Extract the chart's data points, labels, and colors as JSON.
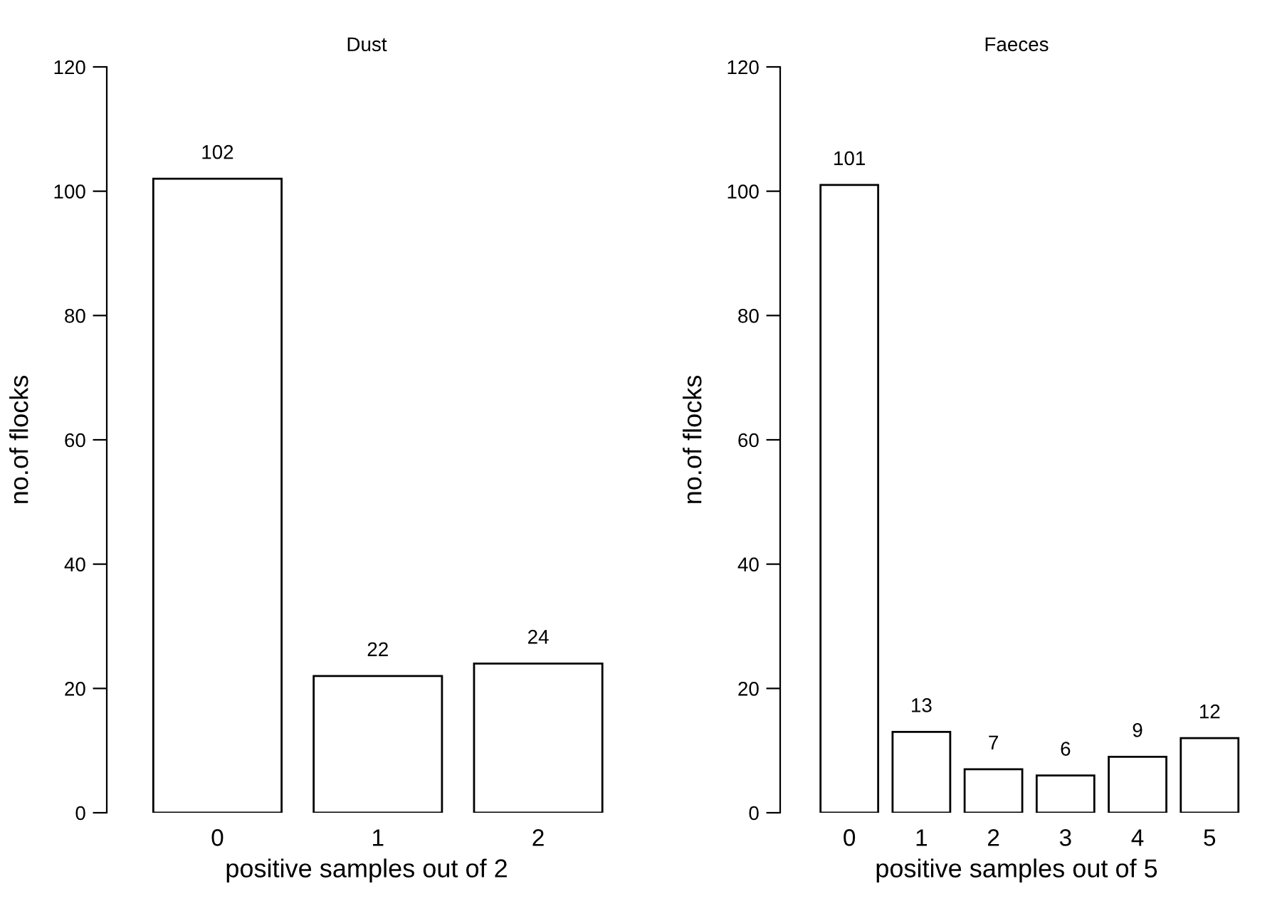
{
  "chart_data": [
    {
      "type": "bar",
      "title": "Dust",
      "xlabel": "positive samples out of 2",
      "ylabel": "no.of flocks",
      "categories": [
        "0",
        "1",
        "2"
      ],
      "values": [
        102,
        22,
        24
      ],
      "color": "#ffffff",
      "ylim": [
        0,
        120
      ],
      "yticks": [
        0,
        20,
        40,
        60,
        80,
        100,
        120
      ],
      "data_labels": true
    },
    {
      "type": "bar",
      "title": "Faeces",
      "xlabel": "positive samples out of 5",
      "ylabel": "no.of flocks",
      "categories": [
        "0",
        "1",
        "2",
        "3",
        "4",
        "5"
      ],
      "values": [
        101,
        13,
        7,
        6,
        9,
        12
      ],
      "color": "#ffffff",
      "ylim": [
        0,
        120
      ],
      "yticks": [
        0,
        20,
        40,
        60,
        80,
        100,
        120
      ],
      "data_labels": true
    }
  ]
}
